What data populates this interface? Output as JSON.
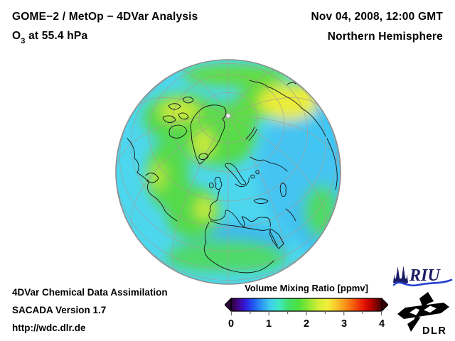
{
  "header": {
    "title": "GOME−2 / MetOp − 4DVar Analysis",
    "species": {
      "prefix": "O",
      "sub": "3",
      "rest": " at 55.4 hPa"
    },
    "datetime": "Nov 04, 2008, 12:00 GMT",
    "region": "Northern Hemisphere"
  },
  "footer": {
    "line1": "4DVar Chemical Data Assimilation",
    "line2": "SACADA Version 1.7",
    "line3": "http://wdc.dlr.de"
  },
  "colorbar": {
    "title": "Volume Mixing Ratio [ppmv]",
    "tick_labels": [
      "0",
      "1",
      "2",
      "3",
      "4"
    ],
    "range": [
      0,
      4
    ],
    "minor_tick_count": 9,
    "left_arrow_color": "#2a0838",
    "right_arrow_color": "#380000",
    "gradient": [
      [
        0.0,
        "#23042e"
      ],
      [
        0.04,
        "#43047e"
      ],
      [
        0.09,
        "#3317d6"
      ],
      [
        0.14,
        "#2050f0"
      ],
      [
        0.2,
        "#2b93f2"
      ],
      [
        0.26,
        "#3ecfec"
      ],
      [
        0.32,
        "#3fe8c2"
      ],
      [
        0.38,
        "#40e06a"
      ],
      [
        0.45,
        "#4ee13c"
      ],
      [
        0.52,
        "#96e833"
      ],
      [
        0.58,
        "#d4ee36"
      ],
      [
        0.64,
        "#f2ee38"
      ],
      [
        0.7,
        "#f9c52a"
      ],
      [
        0.76,
        "#f79018"
      ],
      [
        0.82,
        "#f4540d"
      ],
      [
        0.88,
        "#e81505"
      ],
      [
        0.93,
        "#b80000"
      ],
      [
        1.0,
        "#3f0000"
      ]
    ]
  },
  "globe": {
    "palette": {
      "base_cyan": "#4dd7ee",
      "light_blue": "#44c4f2",
      "blue": "#3cb6ee",
      "green": "#55da4a",
      "yellow": "#e9ec3a",
      "rim_gray": "#8e8e8e"
    },
    "pole_marker_color": "#f2f2f2"
  },
  "logos": {
    "riu_text": "RIU",
    "riu_color": "#1c1c66",
    "riu_wave_color": "#2440d0",
    "dlr_text": "DLR",
    "dlr_color": "#000000"
  }
}
